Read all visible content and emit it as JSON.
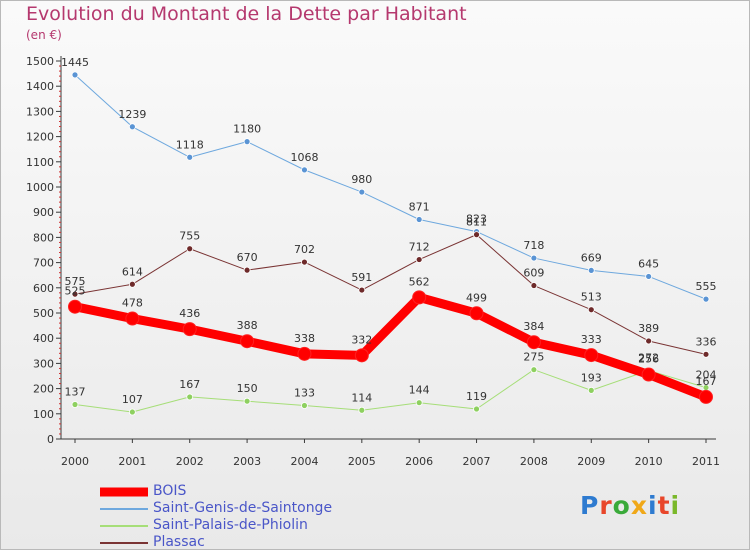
{
  "title": "Evolution du Montant de la Dette par Habitant",
  "unit_label": "(en €)",
  "logo": {
    "letters": [
      "P",
      "r",
      "o",
      "x",
      "i",
      "t",
      "i"
    ],
    "colors": [
      "#2e7bd0",
      "#e8462a",
      "#3aaa3a",
      "#f0a818",
      "#2e7bd0",
      "#e8462a",
      "#7ab82a"
    ]
  },
  "chart_data": {
    "type": "line",
    "title": "Evolution du Montant de la Dette par Habitant",
    "ylabel": "(en €)",
    "xlabel": "",
    "x": [
      "2000",
      "2001",
      "2002",
      "2003",
      "2004",
      "2005",
      "2006",
      "2007",
      "2008",
      "2009",
      "2010",
      "2011"
    ],
    "ylim": [
      0,
      1500
    ],
    "y_ticks": [
      0,
      100,
      200,
      300,
      400,
      500,
      600,
      700,
      800,
      900,
      1000,
      1100,
      1200,
      1300,
      1400,
      1500
    ],
    "grid": false,
    "legend_position": "bottom-left",
    "series": [
      {
        "name": "Saint-Genis-de-Saintonge",
        "color": "#5a94d4",
        "line_color": "#6ea8de",
        "width": 1,
        "values": [
          1445,
          1239,
          1118,
          1180,
          1068,
          980,
          871,
          823,
          718,
          669,
          645,
          555
        ],
        "labels": [
          "1445",
          "1239",
          "1118",
          "1180",
          "1068",
          "980",
          "871",
          "823",
          "718",
          "669",
          "645",
          "555"
        ]
      },
      {
        "name": "Saint-Palais-de-Phiolin",
        "color": "#8ed060",
        "line_color": "#a6de78",
        "width": 1,
        "values": [
          137,
          107,
          167,
          150,
          133,
          114,
          144,
          119,
          275,
          193,
          272,
          204
        ],
        "labels": [
          "137",
          "107",
          "167",
          "150",
          "133",
          "114",
          "144",
          "119",
          "275",
          "193",
          "272",
          "204"
        ]
      },
      {
        "name": "Plassac",
        "color": "#6e2a2a",
        "line_color": "#7a3434",
        "width": 1,
        "values": [
          575,
          614,
          755,
          670,
          702,
          591,
          712,
          811,
          609,
          513,
          389,
          336
        ],
        "labels": [
          "575",
          "614",
          "755",
          "670",
          "702",
          "591",
          "712",
          "811",
          "609",
          "513",
          "389",
          "336"
        ]
      },
      {
        "name": "BOIS",
        "color": "#ff0000",
        "line_color": "#ff0000",
        "width": 9,
        "values": [
          525,
          478,
          436,
          388,
          338,
          332,
          562,
          499,
          384,
          333,
          256,
          167
        ],
        "labels": [
          "525",
          "478",
          "436",
          "388",
          "338",
          "332",
          "562",
          "499",
          "384",
          "333",
          "256",
          "167"
        ]
      }
    ],
    "legend_order": [
      "BOIS",
      "Saint-Genis-de-Saintonge",
      "Saint-Palais-de-Phiolin",
      "Plassac"
    ]
  }
}
